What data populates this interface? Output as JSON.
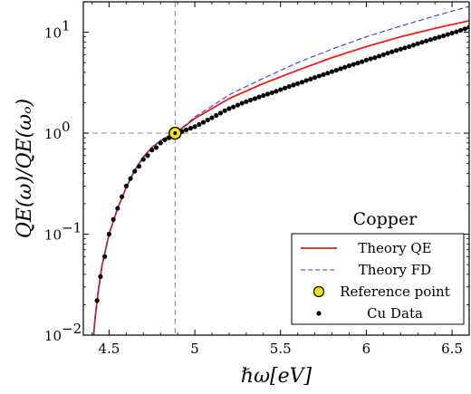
{
  "chart_data": {
    "type": "line",
    "annotation": "Copper",
    "xlabel": "ℏω[eV]",
    "ylabel": "QE(ω)/QE(ωₒ)",
    "xlim": [
      4.35,
      6.6
    ],
    "ylim": [
      0.01,
      20
    ],
    "yscale": "log",
    "grid": false,
    "legend_position": "bottom-right",
    "x_ticks": [
      {
        "value": 4.5,
        "label": "4.5"
      },
      {
        "value": 5.0,
        "label": "5"
      },
      {
        "value": 5.5,
        "label": "5.5"
      },
      {
        "value": 6.0,
        "label": "6"
      },
      {
        "value": 6.5,
        "label": "6.5"
      }
    ],
    "y_ticks": [
      {
        "value": 0.01,
        "base": "10",
        "exp": "−2"
      },
      {
        "value": 0.1,
        "base": "10",
        "exp": "−1"
      },
      {
        "value": 1,
        "base": "10",
        "exp": "0"
      },
      {
        "value": 10,
        "base": "10",
        "exp": "1"
      }
    ],
    "reference_point": {
      "x": 4.885,
      "y": 1.0
    },
    "series": [
      {
        "name": "Theory QE",
        "style": "solid",
        "color": "#e8201e",
        "x": [
          4.41,
          4.42,
          4.44,
          4.46,
          4.5,
          4.55,
          4.6,
          4.65,
          4.7,
          4.75,
          4.8,
          4.85,
          4.885,
          4.95,
          5.0,
          5.1,
          5.2,
          5.4,
          5.6,
          5.8,
          6.0,
          6.2,
          6.4,
          6.6
        ],
        "y": [
          0.01,
          0.0155,
          0.03,
          0.05,
          0.1,
          0.18,
          0.29,
          0.43,
          0.58,
          0.72,
          0.84,
          0.94,
          1.0,
          1.2,
          1.4,
          1.75,
          2.2,
          3.1,
          4.2,
          5.6,
          7.2,
          9.0,
          10.9,
          13.0
        ]
      },
      {
        "name": "Theory FD",
        "style": "dashed",
        "color": "#3a3ad8",
        "x": [
          4.41,
          4.42,
          4.44,
          4.46,
          4.5,
          4.55,
          4.6,
          4.65,
          4.7,
          4.75,
          4.8,
          4.85,
          4.885,
          4.95,
          5.0,
          5.1,
          5.2,
          5.4,
          5.6,
          5.8,
          6.0,
          6.2,
          6.4,
          6.6
        ],
        "y": [
          0.01,
          0.0145,
          0.028,
          0.048,
          0.1,
          0.18,
          0.29,
          0.43,
          0.58,
          0.72,
          0.84,
          0.94,
          1.0,
          1.22,
          1.45,
          1.85,
          2.4,
          3.5,
          5.0,
          6.8,
          9.0,
          11.5,
          14.5,
          18.0
        ]
      },
      {
        "name": "Cu Data",
        "style": "markers",
        "color": "#000000",
        "x": [
          4.43,
          4.45,
          4.475,
          4.5,
          4.525,
          4.55,
          4.575,
          4.6,
          4.625,
          4.65,
          4.675,
          4.7,
          4.725,
          4.75,
          4.775,
          4.8,
          4.825,
          4.85,
          4.875,
          4.9,
          4.925,
          4.95,
          4.975,
          5.0,
          5.025,
          5.05,
          5.075,
          5.1,
          5.125,
          5.15,
          5.175,
          5.2,
          5.225,
          5.25,
          5.275,
          5.3,
          5.325,
          5.35,
          5.375,
          5.4,
          5.425,
          5.45,
          5.475,
          5.5,
          5.525,
          5.55,
          5.575,
          5.6,
          5.625,
          5.65,
          5.675,
          5.7,
          5.725,
          5.75,
          5.775,
          5.8,
          5.825,
          5.85,
          5.875,
          5.9,
          5.925,
          5.95,
          5.975,
          6.0,
          6.025,
          6.05,
          6.075,
          6.1,
          6.125,
          6.15,
          6.175,
          6.2,
          6.225,
          6.25,
          6.275,
          6.3,
          6.325,
          6.35,
          6.375,
          6.4,
          6.425,
          6.45,
          6.475,
          6.5,
          6.525,
          6.55,
          6.575,
          6.6
        ],
        "y": [
          0.022,
          0.038,
          0.06,
          0.1,
          0.14,
          0.18,
          0.235,
          0.3,
          0.355,
          0.42,
          0.47,
          0.55,
          0.6,
          0.68,
          0.72,
          0.8,
          0.86,
          0.9,
          0.95,
          0.99,
          1.04,
          1.08,
          1.12,
          1.16,
          1.22,
          1.28,
          1.35,
          1.42,
          1.5,
          1.58,
          1.67,
          1.75,
          1.82,
          1.9,
          1.98,
          2.05,
          2.13,
          2.2,
          2.28,
          2.36,
          2.44,
          2.52,
          2.6,
          2.7,
          2.8,
          2.9,
          3.0,
          3.1,
          3.2,
          3.32,
          3.44,
          3.56,
          3.68,
          3.8,
          3.93,
          4.07,
          4.2,
          4.35,
          4.5,
          4.65,
          4.8,
          4.95,
          5.1,
          5.3,
          5.45,
          5.6,
          5.8,
          6.0,
          6.2,
          6.4,
          6.6,
          6.8,
          7.0,
          7.2,
          7.45,
          7.7,
          7.95,
          8.2,
          8.45,
          8.7,
          8.95,
          9.2,
          9.5,
          9.8,
          10.1,
          10.45,
          10.8,
          11.2
        ]
      }
    ],
    "legend": [
      {
        "label": "Theory QE",
        "kind": "line",
        "color": "#e8201e",
        "dash": "none"
      },
      {
        "label": "Theory FD",
        "kind": "line",
        "color": "#3a3ad8",
        "dash": "5 3"
      },
      {
        "label": "Reference point",
        "kind": "circle",
        "color": "#f5e400"
      },
      {
        "label": "Cu Data",
        "kind": "dot",
        "color": "#000000"
      }
    ]
  }
}
